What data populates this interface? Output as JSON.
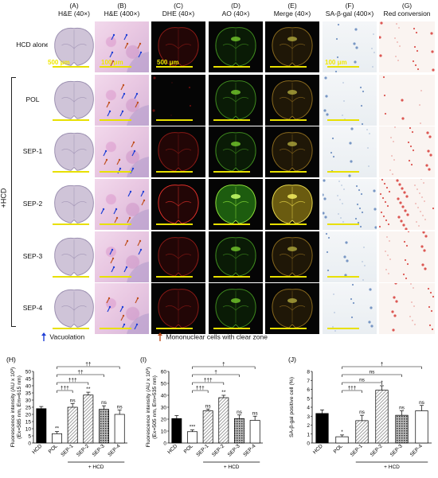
{
  "columns": [
    {
      "letter": "(A)",
      "label": "H&E (40×)"
    },
    {
      "letter": "(B)",
      "label": "H&E (400×)"
    },
    {
      "letter": "(C)",
      "label": "DHE (40×)"
    },
    {
      "letter": "(D)",
      "label": "AO (40×)"
    },
    {
      "letter": "(E)",
      "label": "Merge (40×)"
    },
    {
      "letter": "(F)",
      "label": "SA-β-gal (400×)"
    },
    {
      "letter": "(G)",
      "label": "Red conversion"
    }
  ],
  "rows": [
    {
      "label": "HCD alone"
    },
    {
      "label": "POL"
    },
    {
      "label": "SEP-1"
    },
    {
      "label": "SEP-2"
    },
    {
      "label": "SEP-3"
    },
    {
      "label": "SEP-4"
    }
  ],
  "group_label": "+HCD",
  "scale_bars": {
    "a": "500 μm",
    "b": "100 μm",
    "c": "500 μm",
    "f": "100 μm"
  },
  "legend": {
    "vacuolation": "Vacuolation",
    "mononuclear": "Mononuclear cells with clear zone"
  },
  "colors": {
    "black_bar": "#000000",
    "white_bar": "#ffffff",
    "hatch_bar": "#999999",
    "dark_hatch_bar": "#444444",
    "scale_bar": "#e8e000",
    "vacuolation_arrow": "#1f3fd6",
    "mononuclear_arrow": "#c0501f"
  },
  "chart_data": [
    {
      "panel": "(H)",
      "type": "bar",
      "ylabel": "Fluorescence intensity (AU x 10³)",
      "ylabel2": "(Ex=585 nm, Em=615 nm)",
      "categories": [
        "HCD",
        "POL",
        "SEP-1",
        "SEP-2",
        "SEP-3",
        "SEP-4"
      ],
      "values": [
        24,
        6.5,
        25,
        33.5,
        23.5,
        20
      ],
      "errors": [
        1.5,
        1.5,
        2.5,
        2,
        2.5,
        3
      ],
      "above_labels": [
        "",
        "**",
        "ns",
        "**",
        "ns",
        "ns"
      ],
      "ylim": [
        0,
        50
      ],
      "yticks": [
        "0",
        "5",
        "10",
        "15",
        "20",
        "25",
        "30",
        "35",
        "40",
        "45",
        "50"
      ],
      "group_label": "+ HCD",
      "comparisons": [
        {
          "from": 1,
          "to": 2,
          "label": "†††"
        },
        {
          "from": 1,
          "to": 3,
          "label": "†††"
        },
        {
          "from": 1,
          "to": 4,
          "label": "††"
        },
        {
          "from": 1,
          "to": 5,
          "label": "††"
        }
      ]
    },
    {
      "panel": "(I)",
      "type": "bar",
      "ylabel": "Fluorescence intensity (AU x 10³)",
      "ylabel2": "(Ex=505 nm, Em=535 nm)",
      "categories": [
        "HCD",
        "POL",
        "SEP-1",
        "SEP-2",
        "SEP-3",
        "SEP-4"
      ],
      "values": [
        20.5,
        9.5,
        27,
        38,
        20.5,
        19
      ],
      "errors": [
        2.5,
        1.5,
        1.5,
        2,
        3,
        3.5
      ],
      "above_labels": [
        "",
        "***",
        "ns",
        "**",
        "ns",
        "ns"
      ],
      "ylim": [
        0,
        60
      ],
      "yticks": [
        "0",
        "10",
        "20",
        "30",
        "40",
        "50",
        "60"
      ],
      "group_label": "+ HCD",
      "comparisons": [
        {
          "from": 1,
          "to": 2,
          "label": "†††"
        },
        {
          "from": 1,
          "to": 3,
          "label": "†††"
        },
        {
          "from": 1,
          "to": 4,
          "label": "†"
        },
        {
          "from": 1,
          "to": 5,
          "label": "†"
        }
      ]
    },
    {
      "panel": "(J)",
      "type": "bar",
      "ylabel": "SA-β-gal positive cell (%)",
      "ylabel2": "",
      "categories": [
        "HCD",
        "POL",
        "SEP-1",
        "SEP-2",
        "SEP-3",
        "SEP-4"
      ],
      "values": [
        3.3,
        0.7,
        2.5,
        5.9,
        3.1,
        3.6
      ],
      "errors": [
        0.4,
        0.2,
        0.6,
        0.5,
        0.5,
        0.6
      ],
      "above_labels": [
        "",
        "*",
        "ns",
        "*",
        "ns",
        "ns"
      ],
      "ylim": [
        0,
        8
      ],
      "yticks": [
        "0",
        "1",
        "2",
        "3",
        "4",
        "5",
        "6",
        "7",
        "8"
      ],
      "group_label": "+ HCD",
      "comparisons": [
        {
          "from": 1,
          "to": 2,
          "label": "†††"
        },
        {
          "from": 1,
          "to": 3,
          "label": "ns"
        },
        {
          "from": 1,
          "to": 4,
          "label": "ns"
        },
        {
          "from": 1,
          "to": 5,
          "label": "†"
        }
      ]
    }
  ]
}
